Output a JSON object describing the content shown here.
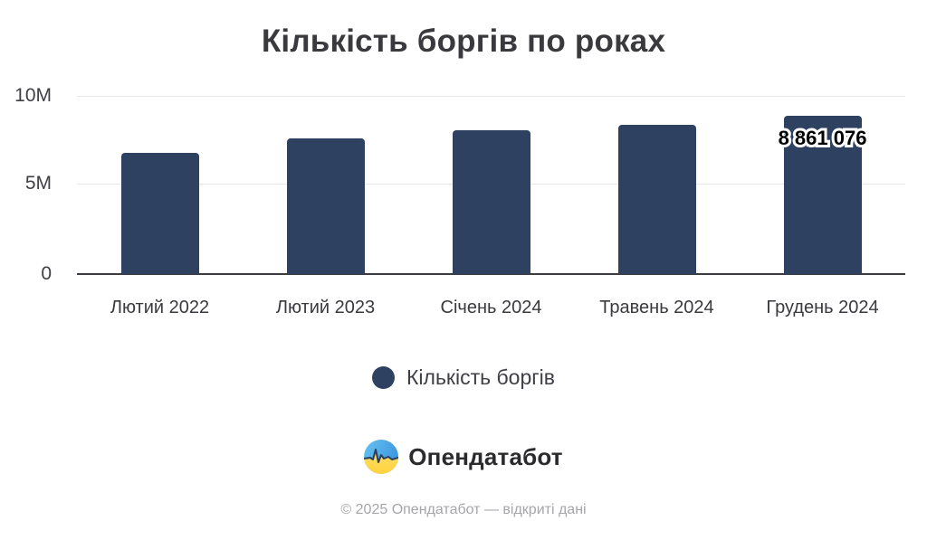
{
  "title": "Кількість боргів по роках",
  "chart_data": {
    "type": "bar",
    "categories": [
      "Лютий 2022",
      "Лютий 2023",
      "Січень 2024",
      "Травень 2024",
      "Грудень 2024"
    ],
    "values": [
      6800000,
      7600000,
      8050000,
      8400000,
      8861076
    ],
    "series_name": "Кількість боргів",
    "title": "Кількість боргів по роках",
    "xlabel": "",
    "ylabel": "",
    "ylim": [
      0,
      10000000
    ],
    "yticks": [
      "0",
      "5M",
      "10M"
    ],
    "grid": true,
    "legend_position": "bottom",
    "bar_color": "#2e4160",
    "annotations": [
      {
        "bar_index": 4,
        "text": "8 861 076"
      }
    ]
  },
  "legend": {
    "label": "Кількість боргів",
    "marker_color": "#2e4160"
  },
  "branding": {
    "logo_text": "Опендатабот",
    "logo_colors": {
      "blue": "#3f97e0",
      "light_blue": "#66c4f1",
      "yellow": "#ffd23f",
      "yellow_light": "#ffe066",
      "pulse": "#2b3f63"
    }
  },
  "footer": {
    "text": "© 2025 Опендатабот — відкриті дані"
  }
}
